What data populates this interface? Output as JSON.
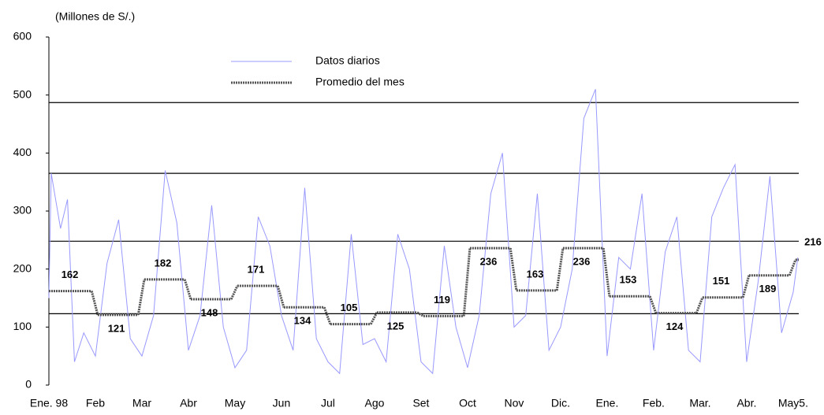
{
  "chart_data": {
    "type": "line",
    "y_axis_label": "(Millones de S/.)",
    "categories": [
      "Ene. 98",
      "Feb",
      "Mar",
      "Abr",
      "May",
      "Jun",
      "Jul",
      "Ago",
      "Set",
      "Oct",
      "Nov",
      "Dic.",
      "Ene.",
      "Feb.",
      "Mar.",
      "Abr.",
      "May5."
    ],
    "xlim": [
      0,
      16.12
    ],
    "ylim": [
      0,
      600
    ],
    "yticks": [
      0,
      100,
      200,
      300,
      400,
      500,
      600
    ],
    "reference_lines": [
      123,
      248,
      365,
      487
    ],
    "series": [
      {
        "name": "Datos diarios",
        "color": "#9999ff",
        "x": [
          0,
          0.05,
          0.25,
          0.4,
          0.55,
          0.75,
          1,
          1.25,
          1.5,
          1.75,
          2,
          2.25,
          2.5,
          2.75,
          3,
          3.25,
          3.5,
          3.75,
          4,
          4.25,
          4.5,
          4.75,
          5,
          5.25,
          5.5,
          5.75,
          6,
          6.25,
          6.5,
          6.75,
          7,
          7.25,
          7.5,
          7.75,
          8,
          8.25,
          8.5,
          8.75,
          9,
          9.25,
          9.5,
          9.75,
          10,
          10.25,
          10.5,
          10.75,
          11,
          11.25,
          11.5,
          11.75,
          12,
          12.25,
          12.5,
          12.75,
          13,
          13.25,
          13.5,
          13.75,
          14,
          14.25,
          14.5,
          14.75,
          15,
          15.25,
          15.5,
          15.75,
          16,
          16.1
        ],
        "values": [
          150,
          365,
          270,
          320,
          40,
          90,
          50,
          210,
          285,
          80,
          50,
          120,
          370,
          280,
          60,
          120,
          310,
          100,
          30,
          60,
          290,
          240,
          120,
          60,
          340,
          80,
          40,
          20,
          260,
          70,
          80,
          40,
          260,
          200,
          40,
          20,
          240,
          100,
          30,
          120,
          330,
          400,
          100,
          120,
          330,
          60,
          100,
          200,
          460,
          510,
          50,
          220,
          200,
          330,
          60,
          230,
          290,
          60,
          40,
          290,
          340,
          380,
          40,
          180,
          360,
          90,
          160,
          220
        ]
      },
      {
        "name": "Promedio del mes",
        "color": "#555555",
        "values": [
          162,
          121,
          182,
          148,
          171,
          134,
          105,
          125,
          119,
          236,
          163,
          236,
          153,
          124,
          151,
          189,
          216
        ]
      }
    ]
  }
}
